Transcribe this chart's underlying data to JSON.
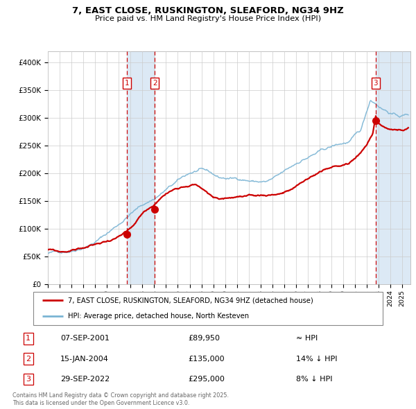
{
  "title": "7, EAST CLOSE, RUSKINGTON, SLEAFORD, NG34 9HZ",
  "subtitle": "Price paid vs. HM Land Registry's House Price Index (HPI)",
  "sale_dates_num": [
    2001.68,
    2004.04,
    2022.75
  ],
  "sale_prices": [
    89950,
    135000,
    295000
  ],
  "sale_labels": [
    "1",
    "2",
    "3"
  ],
  "legend_line1": "7, EAST CLOSE, RUSKINGTON, SLEAFORD, NG34 9HZ (detached house)",
  "legend_line2": "HPI: Average price, detached house, North Kesteven",
  "table_rows": [
    {
      "num": "1",
      "date": "07-SEP-2001",
      "price": "£89,950",
      "hpi": "≈ HPI"
    },
    {
      "num": "2",
      "date": "15-JAN-2004",
      "price": "£135,000",
      "hpi": "14% ↓ HPI"
    },
    {
      "num": "3",
      "date": "29-SEP-2022",
      "price": "£295,000",
      "hpi": "8% ↓ HPI"
    }
  ],
  "footer": "Contains HM Land Registry data © Crown copyright and database right 2025.\nThis data is licensed under the Open Government Licence v3.0.",
  "red_line_color": "#cc0000",
  "blue_line_color": "#7ab4d4",
  "highlight_color": "#dce9f5",
  "dashed_line_color": "#cc0000",
  "grid_color": "#cccccc",
  "ylim": [
    0,
    420000
  ],
  "xlim_start": 1995.0,
  "xlim_end": 2025.7,
  "yticks": [
    0,
    50000,
    100000,
    150000,
    200000,
    250000,
    300000,
    350000,
    400000
  ],
  "ytick_labels": [
    "£0",
    "£50K",
    "£100K",
    "£150K",
    "£200K",
    "£250K",
    "£300K",
    "£350K",
    "£400K"
  ],
  "hpi_waypoints_x": [
    1995.0,
    1996.0,
    1997.0,
    1998.0,
    1999.0,
    2000.0,
    2001.0,
    2002.0,
    2003.0,
    2004.0,
    2005.0,
    2006.0,
    2007.0,
    2007.8,
    2008.5,
    2009.5,
    2010.5,
    2011.5,
    2012.5,
    2013.5,
    2014.5,
    2015.5,
    2016.5,
    2017.5,
    2018.5,
    2019.5,
    2020.5,
    2021.5,
    2022.3,
    2022.8,
    2023.3,
    2023.8,
    2024.3,
    2024.8,
    2025.5
  ],
  "hpi_waypoints_y": [
    56000,
    58000,
    63000,
    72000,
    83000,
    98000,
    115000,
    135000,
    150000,
    162000,
    178000,
    192000,
    205000,
    210000,
    205000,
    193000,
    191000,
    191000,
    188000,
    187000,
    195000,
    207000,
    222000,
    232000,
    240000,
    247000,
    252000,
    270000,
    326000,
    320000,
    313000,
    308000,
    303000,
    300000,
    303000
  ],
  "prop_waypoints_x": [
    1995.0,
    1995.5,
    1996.0,
    1996.5,
    1997.0,
    1997.5,
    1998.0,
    1999.0,
    2000.0,
    2001.0,
    2001.68,
    2002.3,
    2003.0,
    2003.7,
    2004.04,
    2004.5,
    2005.0,
    2005.5,
    2006.0,
    2006.5,
    2007.0,
    2007.5,
    2008.0,
    2008.5,
    2009.0,
    2009.5,
    2010.0,
    2010.5,
    2011.0,
    2011.5,
    2012.0,
    2012.5,
    2013.0,
    2013.5,
    2014.0,
    2014.5,
    2015.0,
    2015.5,
    2016.0,
    2016.5,
    2017.0,
    2017.5,
    2018.0,
    2018.5,
    2019.0,
    2019.5,
    2020.0,
    2020.5,
    2021.0,
    2021.5,
    2022.0,
    2022.5,
    2022.75,
    2023.0,
    2023.5,
    2024.0,
    2024.5,
    2025.0,
    2025.5
  ],
  "prop_waypoints_y": [
    62000,
    60000,
    57000,
    58000,
    60000,
    63000,
    65000,
    70000,
    76000,
    84000,
    89950,
    100000,
    118000,
    130000,
    135000,
    148000,
    156000,
    162000,
    168000,
    172000,
    176000,
    178000,
    172000,
    162000,
    153000,
    150000,
    152000,
    153000,
    155000,
    154000,
    152000,
    151000,
    152000,
    153000,
    155000,
    157000,
    160000,
    163000,
    168000,
    175000,
    182000,
    188000,
    195000,
    198000,
    201000,
    203000,
    205000,
    208000,
    218000,
    230000,
    242000,
    262000,
    295000,
    282000,
    275000,
    270000,
    268000,
    268000,
    270000
  ]
}
